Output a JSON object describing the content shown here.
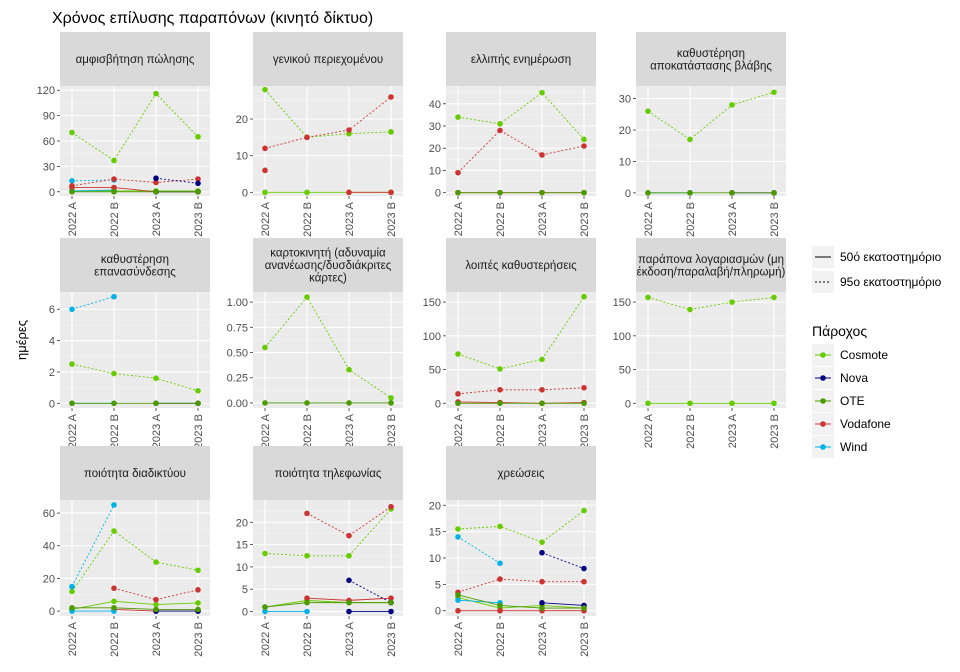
{
  "chart_data": {
    "type": "line",
    "title": "Χρόνος επίλυσης παραπόνων (κινητό δίκτυο)",
    "ylabel": "ημέρες",
    "xlabel": "",
    "x": [
      "2022 A",
      "2022 B",
      "2023 A",
      "2023 B"
    ],
    "grid": true,
    "legend_placement": "right",
    "linetype_legend": {
      "entries": [
        {
          "key": "p50",
          "label": "50ό εκατοστημόριο",
          "dash": "solid"
        },
        {
          "key": "p95",
          "label": "95ο εκατοστημόριο",
          "dash": "dotted"
        }
      ]
    },
    "color_legend": {
      "title": "Πάροχος",
      "entries": [
        {
          "key": "Cosmote",
          "label": "Cosmote",
          "color": "#66cc00"
        },
        {
          "key": "Nova",
          "label": "Nova",
          "color": "#000080"
        },
        {
          "key": "OTE",
          "label": "OTE",
          "color": "#4d9900"
        },
        {
          "key": "Vodafone",
          "label": "Vodafone",
          "color": "#cc3333"
        },
        {
          "key": "Wind",
          "label": "Wind",
          "color": "#00b2e6"
        }
      ]
    },
    "panels": [
      {
        "title": "αμφισβήτηση πώλησης",
        "ylim": [
          -5,
          125
        ],
        "yticks": [
          0,
          30,
          60,
          90,
          120
        ],
        "series": [
          {
            "provider": "Cosmote",
            "percentile": "p95",
            "values": [
              70,
              37,
              116,
              65
            ]
          },
          {
            "provider": "Cosmote",
            "percentile": "p50",
            "values": [
              1,
              1,
              1,
              1
            ]
          },
          {
            "provider": "Wind",
            "percentile": "p95",
            "values": [
              13,
              14,
              null,
              null
            ]
          },
          {
            "provider": "Wind",
            "percentile": "p50",
            "values": [
              1,
              2,
              null,
              null
            ]
          },
          {
            "provider": "Vodafone",
            "percentile": "p95",
            "values": [
              7,
              15,
              11,
              15
            ]
          },
          {
            "provider": "Vodafone",
            "percentile": "p50",
            "values": [
              5,
              5,
              0,
              0
            ]
          },
          {
            "provider": "Nova",
            "percentile": "p95",
            "values": [
              null,
              null,
              16,
              10
            ]
          },
          {
            "provider": "Nova",
            "percentile": "p50",
            "values": [
              null,
              null,
              0,
              0
            ]
          },
          {
            "provider": "OTE",
            "percentile": "p50",
            "values": [
              0,
              0,
              0,
              0
            ]
          }
        ]
      },
      {
        "title": "γενικού περιεχομένου",
        "ylim": [
          -1,
          29
        ],
        "yticks": [
          0,
          10,
          20
        ],
        "series": [
          {
            "provider": "Cosmote",
            "percentile": "p95",
            "values": [
              28,
              15,
              16,
              16.5
            ]
          },
          {
            "provider": "Cosmote",
            "percentile": "p50",
            "values": [
              0,
              0,
              0,
              0
            ]
          },
          {
            "provider": "Vodafone",
            "percentile": "p95",
            "values": [
              12,
              15,
              17,
              26
            ]
          },
          {
            "provider": "Vodafone",
            "percentile": "p50",
            "values": [
              6,
              null,
              0,
              0
            ]
          }
        ]
      },
      {
        "title": "ελλιπής ενημέρωση",
        "ylim": [
          -1.5,
          48
        ],
        "yticks": [
          0,
          10,
          20,
          30,
          40
        ],
        "series": [
          {
            "provider": "Cosmote",
            "percentile": "p95",
            "values": [
              34,
              31,
              45,
              24
            ]
          },
          {
            "provider": "Vodafone",
            "percentile": "p95",
            "values": [
              9,
              28,
              17,
              21
            ]
          },
          {
            "provider": "Vodafone",
            "percentile": "p50",
            "values": [
              0,
              0,
              0,
              0
            ]
          },
          {
            "provider": "OTE",
            "percentile": "p50",
            "values": [
              0,
              0,
              0,
              0
            ]
          }
        ]
      },
      {
        "title": "καθυστέρηση αποκατάστασης βλάβης",
        "ylim": [
          -1,
          34
        ],
        "yticks": [
          0,
          10,
          20,
          30
        ],
        "series": [
          {
            "provider": "Cosmote",
            "percentile": "p95",
            "values": [
              26,
              17,
              28,
              32
            ]
          },
          {
            "provider": "Wind",
            "percentile": "p50",
            "values": [
              0,
              0,
              null,
              null
            ]
          },
          {
            "provider": "Nova",
            "percentile": "p50",
            "values": [
              null,
              null,
              0,
              0
            ]
          },
          {
            "provider": "OTE",
            "percentile": "p50",
            "values": [
              0,
              0,
              0,
              0
            ]
          }
        ]
      },
      {
        "title": "καθυστέρηση επανασύνδεσης",
        "ylim": [
          -0.3,
          7.1
        ],
        "yticks": [
          0,
          2,
          4,
          6
        ],
        "series": [
          {
            "provider": "Cosmote",
            "percentile": "p95",
            "values": [
              2.5,
              1.9,
              1.6,
              0.8
            ]
          },
          {
            "provider": "Wind",
            "percentile": "p95",
            "values": [
              6,
              6.8,
              null,
              null
            ]
          },
          {
            "provider": "Wind",
            "percentile": "p50",
            "values": [
              0,
              0,
              null,
              null
            ]
          },
          {
            "provider": "Nova",
            "percentile": "p50",
            "values": [
              null,
              null,
              0,
              0
            ]
          },
          {
            "provider": "OTE",
            "percentile": "p50",
            "values": [
              0,
              0,
              0,
              0
            ]
          }
        ]
      },
      {
        "title": "καρτοκινητή (αδυναμία ανανέωσης/δυσδιάκριτες κάρτες)",
        "ylim": [
          -0.05,
          1.1
        ],
        "yticks": [
          0.0,
          0.25,
          0.5,
          0.75,
          1.0
        ],
        "ytick_labels": [
          "0.00",
          "0.25",
          "0.50",
          "0.75",
          "1.00"
        ],
        "series": [
          {
            "provider": "Cosmote",
            "percentile": "p95",
            "values": [
              0.55,
              1.05,
              0.33,
              0.05
            ]
          },
          {
            "provider": "OTE",
            "percentile": "p50",
            "values": [
              0,
              0,
              0,
              0
            ]
          }
        ]
      },
      {
        "title": "λοιπές καθυστερήσεις",
        "ylim": [
          -7,
          165
        ],
        "yticks": [
          0,
          50,
          100,
          150
        ],
        "series": [
          {
            "provider": "Cosmote",
            "percentile": "p95",
            "values": [
              73,
              51,
              65,
              158
            ]
          },
          {
            "provider": "Vodafone",
            "percentile": "p95",
            "values": [
              14,
              20,
              20,
              23
            ]
          },
          {
            "provider": "Vodafone",
            "percentile": "p50",
            "values": [
              2,
              1,
              0,
              1
            ]
          },
          {
            "provider": "OTE",
            "percentile": "p50",
            "values": [
              0,
              0,
              0,
              0
            ]
          }
        ]
      },
      {
        "title": "παράπονα λογαριασμών (μη έκδοση/παραλαβή/πληρωμή)",
        "ylim": [
          -7,
          165
        ],
        "yticks": [
          0,
          50,
          100,
          150
        ],
        "series": [
          {
            "provider": "Cosmote",
            "percentile": "p95",
            "values": [
              157,
              139,
              150,
              157
            ]
          },
          {
            "provider": "Cosmote",
            "percentile": "p50",
            "values": [
              0,
              0,
              0,
              0
            ]
          }
        ]
      },
      {
        "title": "ποιότητα διαδικτύου",
        "ylim": [
          -3,
          68
        ],
        "yticks": [
          0,
          20,
          40,
          60
        ],
        "series": [
          {
            "provider": "Cosmote",
            "percentile": "p95",
            "values": [
              12,
              49,
              30,
              25
            ]
          },
          {
            "provider": "Cosmote",
            "percentile": "p50",
            "values": [
              1,
              6,
              4,
              5
            ]
          },
          {
            "provider": "Wind",
            "percentile": "p95",
            "values": [
              15,
              65,
              null,
              null
            ]
          },
          {
            "provider": "Vodafone",
            "percentile": "p95",
            "values": [
              null,
              14,
              7,
              13
            ]
          },
          {
            "provider": "Vodafone",
            "percentile": "p50",
            "values": [
              null,
              1,
              0,
              0
            ]
          },
          {
            "provider": "Wind",
            "percentile": "p50",
            "values": [
              0,
              0,
              null,
              null
            ]
          },
          {
            "provider": "Nova",
            "percentile": "p50",
            "values": [
              null,
              null,
              0,
              0
            ]
          },
          {
            "provider": "OTE",
            "percentile": "p50",
            "values": [
              2,
              2,
              1,
              1
            ]
          }
        ]
      },
      {
        "title": "ποιότητα τηλεφωνίας",
        "ylim": [
          -1,
          25
        ],
        "yticks": [
          0,
          5,
          10,
          15,
          20
        ],
        "series": [
          {
            "provider": "Cosmote",
            "percentile": "p95",
            "values": [
              13,
              12.5,
              12.5,
              23
            ]
          },
          {
            "provider": "Cosmote",
            "percentile": "p50",
            "values": [
              1,
              2.5,
              2,
              2
            ]
          },
          {
            "provider": "Vodafone",
            "percentile": "p95",
            "values": [
              null,
              22,
              17,
              23.5
            ]
          },
          {
            "provider": "Vodafone",
            "percentile": "p50",
            "values": [
              null,
              3,
              2.5,
              3
            ]
          },
          {
            "provider": "Nova",
            "percentile": "p95",
            "values": [
              null,
              null,
              7,
              2
            ]
          },
          {
            "provider": "Nova",
            "percentile": "p50",
            "values": [
              null,
              null,
              0,
              0
            ]
          },
          {
            "provider": "Wind",
            "percentile": "p50",
            "values": [
              0,
              0,
              null,
              null
            ]
          },
          {
            "provider": "OTE",
            "percentile": "p50",
            "values": [
              1,
              2,
              2,
              2
            ]
          }
        ]
      },
      {
        "title": "χρεώσεις",
        "ylim": [
          -1,
          21
        ],
        "yticks": [
          0,
          5,
          10,
          15,
          20
        ],
        "series": [
          {
            "provider": "Cosmote",
            "percentile": "p95",
            "values": [
              15.5,
              16,
              13,
              19
            ]
          },
          {
            "provider": "Cosmote",
            "percentile": "p50",
            "values": [
              2.5,
              0.5,
              1,
              0.5
            ]
          },
          {
            "provider": "Wind",
            "percentile": "p95",
            "values": [
              14,
              9,
              null,
              null
            ]
          },
          {
            "provider": "Wind",
            "percentile": "p50",
            "values": [
              2,
              1.5,
              null,
              null
            ]
          },
          {
            "provider": "Nova",
            "percentile": "p95",
            "values": [
              null,
              null,
              11,
              8
            ]
          },
          {
            "provider": "Nova",
            "percentile": "p50",
            "values": [
              null,
              null,
              1.5,
              1
            ]
          },
          {
            "provider": "Vodafone",
            "percentile": "p95",
            "values": [
              3.5,
              6,
              5.5,
              5.5
            ]
          },
          {
            "provider": "Vodafone",
            "percentile": "p50",
            "values": [
              0,
              0,
              0,
              0
            ]
          },
          {
            "provider": "OTE",
            "percentile": "p50",
            "values": [
              3,
              1,
              0.5,
              0.5
            ]
          }
        ]
      }
    ]
  }
}
